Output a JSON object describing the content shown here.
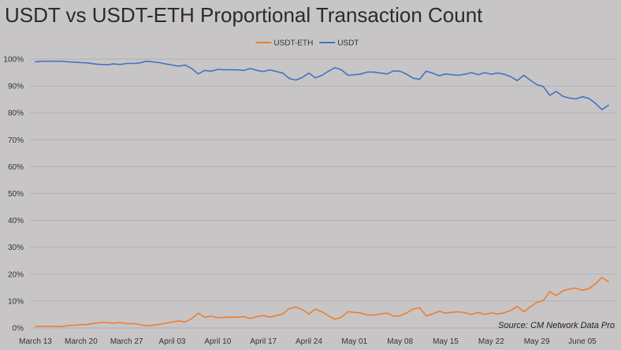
{
  "title": "USDT vs USDT-ETH Proportional Transaction Count",
  "source": "Source: CM Network Data Pro",
  "chart_data": {
    "type": "line",
    "title": "USDT vs USDT-ETH Proportional Transaction Count",
    "xlabel": "",
    "ylabel": "",
    "ylim": [
      0,
      100
    ],
    "y_ticks": [
      "0%",
      "10%",
      "20%",
      "30%",
      "40%",
      "50%",
      "60%",
      "70%",
      "80%",
      "90%",
      "100%"
    ],
    "x_tick_labels": [
      "March 13",
      "March 20",
      "March 27",
      "April 03",
      "April 10",
      "April 17",
      "April 24",
      "May 01",
      "May 08",
      "May 15",
      "May 22",
      "May 29",
      "June 05"
    ],
    "x": [
      "Mar 13",
      "Mar 14",
      "Mar 15",
      "Mar 16",
      "Mar 17",
      "Mar 18",
      "Mar 19",
      "Mar 20",
      "Mar 21",
      "Mar 22",
      "Mar 23",
      "Mar 24",
      "Mar 25",
      "Mar 26",
      "Mar 27",
      "Mar 28",
      "Mar 29",
      "Mar 30",
      "Mar 31",
      "Apr 01",
      "Apr 02",
      "Apr 03",
      "Apr 04",
      "Apr 05",
      "Apr 06",
      "Apr 07",
      "Apr 08",
      "Apr 09",
      "Apr 10",
      "Apr 11",
      "Apr 12",
      "Apr 13",
      "Apr 14",
      "Apr 15",
      "Apr 16",
      "Apr 17",
      "Apr 18",
      "Apr 19",
      "Apr 20",
      "Apr 21",
      "Apr 22",
      "Apr 23",
      "Apr 24",
      "Apr 25",
      "Apr 26",
      "Apr 27",
      "Apr 28",
      "Apr 29",
      "Apr 30",
      "May 01",
      "May 02",
      "May 03",
      "May 04",
      "May 05",
      "May 06",
      "May 07",
      "May 08",
      "May 09",
      "May 10",
      "May 11",
      "May 12",
      "May 13",
      "May 14",
      "May 15",
      "May 16",
      "May 17",
      "May 18",
      "May 19",
      "May 20",
      "May 21",
      "May 22",
      "May 23",
      "May 24",
      "May 25",
      "May 26",
      "May 27",
      "May 28",
      "May 29",
      "May 30",
      "May 31",
      "Jun 01",
      "Jun 02",
      "Jun 03",
      "Jun 04",
      "Jun 05",
      "Jun 06",
      "Jun 07",
      "Jun 08",
      "Jun 09"
    ],
    "legend_position": "top",
    "grid": true,
    "series": [
      {
        "name": "USDT-ETH",
        "color": "#ed7d31",
        "values": [
          0.5,
          0.6,
          0.6,
          0.6,
          0.5,
          0.9,
          1.0,
          1.2,
          1.3,
          1.7,
          2.0,
          2.0,
          1.8,
          2.0,
          1.6,
          1.6,
          1.3,
          0.8,
          1.0,
          1.3,
          1.8,
          2.2,
          2.6,
          2.2,
          3.5,
          5.5,
          4.0,
          4.4,
          3.8,
          4.0,
          4.0,
          4.0,
          4.2,
          3.5,
          4.2,
          4.6,
          4.0,
          4.6,
          5.2,
          7.2,
          7.8,
          6.8,
          5.2,
          7.0,
          6.0,
          4.5,
          3.2,
          4.0,
          6.0,
          5.8,
          5.5,
          4.8,
          4.8,
          5.2,
          5.5,
          4.4,
          4.5,
          5.6,
          7.0,
          7.5,
          4.5,
          5.2,
          6.2,
          5.5,
          5.8,
          6.0,
          5.6,
          5.0,
          5.8,
          5.0,
          5.6,
          5.2,
          5.6,
          6.5,
          8.0,
          6.0,
          7.8,
          9.5,
          10.2,
          13.5,
          12.0,
          13.8,
          14.5,
          14.8,
          14.0,
          14.6,
          16.4,
          18.8,
          17.2
        ]
      },
      {
        "name": "USDT",
        "color": "#4472c4",
        "values": [
          99.0,
          99.2,
          99.2,
          99.2,
          99.2,
          99.0,
          98.9,
          98.7,
          98.6,
          98.2,
          98.0,
          97.9,
          98.2,
          98.0,
          98.4,
          98.4,
          98.6,
          99.2,
          99.0,
          98.7,
          98.2,
          97.8,
          97.4,
          97.8,
          96.5,
          94.5,
          95.8,
          95.5,
          96.2,
          96.0,
          96.0,
          96.0,
          95.8,
          96.5,
          95.8,
          95.4,
          96.0,
          95.4,
          94.8,
          92.8,
          92.2,
          93.2,
          94.8,
          93.0,
          94.0,
          95.5,
          96.8,
          96.0,
          94.0,
          94.2,
          94.5,
          95.2,
          95.2,
          94.8,
          94.5,
          95.6,
          95.5,
          94.4,
          92.9,
          92.5,
          95.5,
          94.8,
          93.8,
          94.5,
          94.2,
          94.0,
          94.4,
          95.0,
          94.2,
          95.0,
          94.4,
          94.8,
          94.4,
          93.5,
          92.0,
          94.0,
          92.2,
          90.5,
          89.8,
          86.5,
          88.0,
          86.2,
          85.5,
          85.2,
          86.0,
          85.4,
          83.6,
          81.2,
          82.8
        ]
      }
    ]
  }
}
